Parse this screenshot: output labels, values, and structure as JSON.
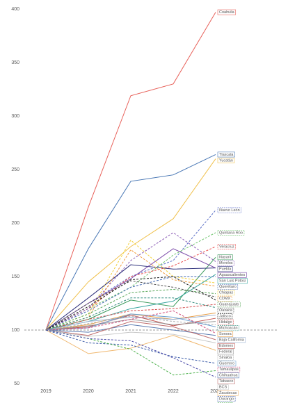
{
  "chart_data": {
    "type": "line",
    "x": [
      "2019",
      "2020",
      "2021",
      "2022",
      "2023"
    ],
    "ylim": [
      50,
      400
    ],
    "yticks": [
      50,
      100,
      150,
      200,
      250,
      300,
      350,
      400
    ],
    "reference_line": 100,
    "series": [
      {
        "name": "Coahuila",
        "color": "#e8615a",
        "dashed": false,
        "values": [
          100,
          215,
          319,
          330,
          397
        ]
      },
      {
        "name": "Tlaxcala",
        "color": "#4a78b5",
        "dashed": false,
        "values": [
          100,
          176,
          239,
          245,
          264
        ]
      },
      {
        "name": "Yucatán",
        "color": "#f0c04a",
        "dashed": false,
        "values": [
          100,
          145,
          178,
          204,
          260
        ]
      },
      {
        "name": "Nuevo León",
        "color": "#5b6fc7",
        "dashed": true,
        "values": [
          100,
          125,
          150,
          165,
          212
        ]
      },
      {
        "name": "Quintana Roo",
        "color": "#6cc46c",
        "dashed": true,
        "values": [
          100,
          120,
          140,
          170,
          191
        ]
      },
      {
        "name": "Veracruz",
        "color": "#e84a4a",
        "dashed": true,
        "values": [
          100,
          120,
          150,
          160,
          178
        ]
      },
      {
        "name": "Nayarit",
        "color": "#3a9a5b",
        "dashed": false,
        "values": [
          100,
          110,
          128,
          122,
          168
        ]
      },
      {
        "name": "Morelos",
        "color": "#8a5bb5",
        "dashed": true,
        "values": [
          100,
          120,
          165,
          191,
          164
        ]
      },
      {
        "name": "Puebla",
        "color": "#2c2f7a",
        "dashed": false,
        "values": [
          100,
          130,
          161,
          157,
          158
        ]
      },
      {
        "name": "Aguascalientes",
        "color": "#7a4aa8",
        "dashed": false,
        "values": [
          100,
          125,
          148,
          176,
          158
        ]
      },
      {
        "name": "San Luis Potosí",
        "color": "#3aa6a0",
        "dashed": false,
        "values": [
          100,
          108,
          120,
          127,
          152
        ]
      },
      {
        "name": "Querétaro",
        "color": "#3f66b0",
        "dashed": true,
        "values": [
          100,
          118,
          140,
          150,
          150
        ]
      },
      {
        "name": "Chiapas",
        "color": "#f2d13a",
        "dashed": true,
        "values": [
          100,
          115,
          184,
          150,
          144
        ]
      },
      {
        "name": "CDMX",
        "color": "#f29a3a",
        "dashed": true,
        "values": [
          100,
          112,
          175,
          147,
          141
        ]
      },
      {
        "name": "Guanajuato",
        "color": "#5aa85a",
        "dashed": true,
        "values": [
          100,
          115,
          135,
          138,
          134
        ]
      },
      {
        "name": "Oaxaca",
        "color": "#555555",
        "dashed": true,
        "values": [
          100,
          125,
          146,
          140,
          131
        ]
      },
      {
        "name": "Jalisco",
        "color": "#222222",
        "dashed": true,
        "values": [
          100,
          122,
          147,
          150,
          128
        ]
      },
      {
        "name": "Hidalgo",
        "color": "#d24a4a",
        "dashed": true,
        "values": [
          100,
          110,
          118,
          120,
          124
        ]
      },
      {
        "name": "Michoacán",
        "color": "#2f8a7a",
        "dashed": true,
        "values": [
          100,
          112,
          130,
          130,
          121
        ]
      },
      {
        "name": "Sonora",
        "color": "#e8a04a",
        "dashed": false,
        "values": [
          100,
          105,
          115,
          110,
          116
        ]
      },
      {
        "name": "Baja California",
        "color": "#9ab0d0",
        "dashed": false,
        "values": [
          100,
          108,
          112,
          110,
          114
        ]
      },
      {
        "name": "Edomex",
        "color": "#c0504d",
        "dashed": false,
        "values": [
          100,
          103,
          114,
          104,
          111
        ]
      },
      {
        "name": "Federal",
        "color": "#999999",
        "dashed": false,
        "values": [
          100,
          104,
          110,
          105,
          108
        ]
      },
      {
        "name": "Sinaloa",
        "color": "#b0b0b0",
        "dashed": true,
        "values": [
          100,
          106,
          113,
          108,
          105
        ]
      },
      {
        "name": "Guerrero",
        "color": "#6a9ed0",
        "dashed": false,
        "values": [
          100,
          102,
          115,
          112,
          103
        ]
      },
      {
        "name": "Tamaulipas",
        "color": "#d04a7a",
        "dashed": true,
        "values": [
          100,
          102,
          110,
          118,
          97
        ]
      },
      {
        "name": "Chihuahua",
        "color": "#5a7ab0",
        "dashed": false,
        "values": [
          100,
          98,
          105,
          100,
          95
        ]
      },
      {
        "name": "Tabasco",
        "color": "#c07070",
        "dashed": false,
        "values": [
          100,
          95,
          108,
          103,
          91
        ]
      },
      {
        "name": "BCS",
        "color": "#c8c8c8",
        "dashed": false,
        "values": [
          100,
          94,
          98,
          96,
          88
        ]
      },
      {
        "name": "Zacatecas",
        "color": "#f0b870",
        "dashed": false,
        "values": [
          100,
          78,
          83,
          95,
          81
        ]
      },
      {
        "name": "Durango",
        "color": "#3a5aa8",
        "dashed": true,
        "values": [
          100,
          88,
          86,
          75,
          69
        ]
      },
      {
        "name": "Colima",
        "color": "#4ab04a",
        "dashed": true,
        "values": [
          100,
          92,
          82,
          58,
          62
        ]
      },
      {
        "name": "Campeche",
        "color": "#4a4aa8",
        "dashed": true,
        "values": [
          100,
          92,
          90,
          74,
          56
        ]
      }
    ]
  }
}
